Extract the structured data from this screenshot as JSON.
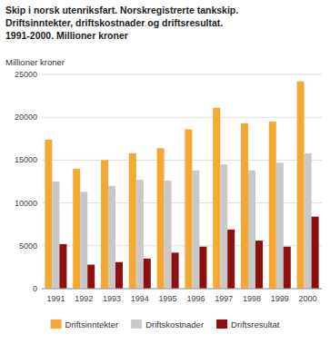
{
  "chart_data": {
    "type": "bar",
    "title": "Skip i norsk utenriksfart. Norskregistrerte tankskip.\nDriftsinntekter, driftskostnader og driftsresultat.\n1991-2000. Millioner kroner",
    "y_label": "Millioner kroner",
    "categories": [
      "1991",
      "1992",
      "1993",
      "1994",
      "1995",
      "1996",
      "1997",
      "1998",
      "1999",
      "2000"
    ],
    "series": [
      {
        "name": "Driftsinntekter",
        "color": "#F5A832",
        "values": [
          17400,
          14000,
          15000,
          15800,
          16400,
          18600,
          21100,
          19300,
          19500,
          24200
        ]
      },
      {
        "name": "Driftskostnader",
        "color": "#C8C8C8",
        "values": [
          12500,
          11300,
          12000,
          12700,
          12600,
          13800,
          14500,
          13800,
          14700,
          15800
        ]
      },
      {
        "name": "Driftsresultat",
        "color": "#8B1010",
        "values": [
          5200,
          2800,
          3100,
          3500,
          4200,
          4900,
          6900,
          5600,
          4900,
          8400
        ]
      }
    ],
    "ylim": [
      0,
      25000
    ],
    "yticks": [
      0,
      5000,
      10000,
      15000,
      20000,
      25000
    ],
    "grid": true,
    "legend": "bottom"
  }
}
